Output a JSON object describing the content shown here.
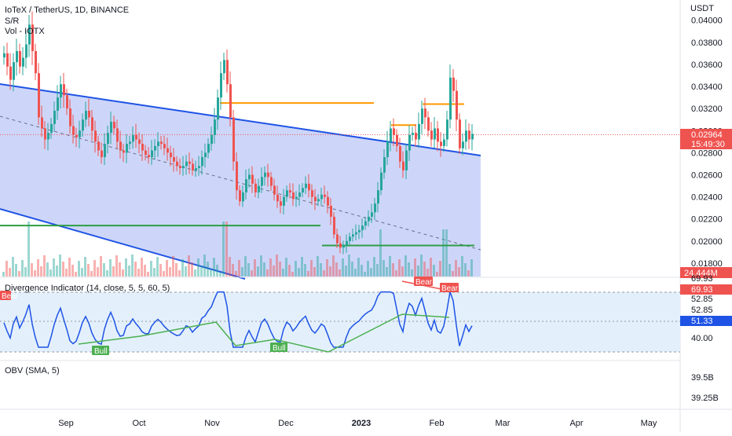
{
  "header": {
    "symbol_line": "IoTeX / TetherUS, 1D, BINANCE",
    "sr_label": "S/R",
    "vol_label": "Vol - IOTX"
  },
  "price_axis": {
    "currency": "USDT",
    "ticks": [
      "0.04000",
      "0.03800",
      "0.03600",
      "0.03400",
      "0.03200",
      "0.03000",
      "0.02800",
      "0.02600",
      "0.02400",
      "0.02200",
      "0.02000",
      "0.01800"
    ],
    "last_price": "0.02964",
    "countdown": "15:49:30",
    "volume_badge": "24.444M"
  },
  "divergence": {
    "title": "Divergence Indicator (14, close, 5, 5, 60, 5)",
    "axis_labels": [
      "69.93",
      "52.85",
      "52.85",
      "40.00"
    ],
    "badge_top": "69.93",
    "badge_current": "51.33",
    "bear_label": "Bear",
    "bull_label": "Bull"
  },
  "obv": {
    "title": "OBV (SMA, 5)",
    "axis_labels": [
      "39.5B",
      "39.25B"
    ]
  },
  "time_axis": {
    "labels": [
      "Sep",
      "Oct",
      "Nov",
      "Dec",
      "2023",
      "Feb",
      "Mar",
      "Apr",
      "May"
    ]
  },
  "colors": {
    "up": "#26a69a",
    "down": "#ef5350",
    "channel_line": "#1e53e5",
    "channel_fill": "#bcc8f7",
    "resistance": "#ff9800",
    "support": "#2e9e45",
    "rsi_line": "#1e53e5",
    "rsi_band": "#e3f0fc",
    "divergence_bull": "#4caf50",
    "divergence_bear": "#ef5350",
    "price_badge": "#ef5350"
  },
  "chart_data": {
    "type": "candlestick",
    "symbol": "IoTeX / TetherUS",
    "timeframe": "1D",
    "exchange": "BINANCE",
    "y_axis": {
      "label": "USDT",
      "range": [
        0.0175,
        0.0414
      ]
    },
    "x_axis": {
      "labels": [
        "Sep",
        "Oct",
        "Nov",
        "Dec",
        "2023",
        "Feb",
        "Mar",
        "Apr",
        "May"
      ]
    },
    "close_series": [
      0.037,
      0.0358,
      0.0346,
      0.0362,
      0.0372,
      0.0358,
      0.0366,
      0.0378,
      0.0396,
      0.0372,
      0.0352,
      0.0312,
      0.0302,
      0.0292,
      0.0298,
      0.0306,
      0.0318,
      0.033,
      0.0342,
      0.0332,
      0.032,
      0.0304,
      0.0296,
      0.0294,
      0.03,
      0.031,
      0.0318,
      0.0312,
      0.03,
      0.029,
      0.0282,
      0.0276,
      0.0288,
      0.0298,
      0.0308,
      0.0302,
      0.029,
      0.0282,
      0.028,
      0.0288,
      0.029,
      0.0296,
      0.0292,
      0.0288,
      0.0282,
      0.0278,
      0.0276,
      0.0282,
      0.0286,
      0.029,
      0.0288,
      0.0284,
      0.028,
      0.0276,
      0.0272,
      0.0268,
      0.0266,
      0.0268,
      0.0272,
      0.027,
      0.0264,
      0.0266,
      0.0268,
      0.0276,
      0.028,
      0.0288,
      0.0296,
      0.031,
      0.033,
      0.0352,
      0.0364,
      0.0342,
      0.0312,
      0.0272,
      0.0246,
      0.0236,
      0.0244,
      0.0256,
      0.026,
      0.0252,
      0.0244,
      0.025,
      0.0258,
      0.0262,
      0.0258,
      0.025,
      0.0242,
      0.0236,
      0.0232,
      0.024,
      0.0246,
      0.0244,
      0.0238,
      0.024,
      0.0244,
      0.0248,
      0.0252,
      0.0246,
      0.024,
      0.0236,
      0.0238,
      0.0242,
      0.024,
      0.0232,
      0.0222,
      0.0206,
      0.0198,
      0.0194,
      0.0196,
      0.02,
      0.0204,
      0.0206,
      0.0208,
      0.021,
      0.0214,
      0.0218,
      0.0222,
      0.0226,
      0.0234,
      0.0246,
      0.0262,
      0.0276,
      0.029,
      0.0302,
      0.0296,
      0.0286,
      0.0272,
      0.0264,
      0.0282,
      0.0296,
      0.0298,
      0.0292,
      0.0306,
      0.032,
      0.0312,
      0.03,
      0.0292,
      0.0302,
      0.029,
      0.0286,
      0.0292,
      0.031,
      0.0348,
      0.0336,
      0.031,
      0.0284,
      0.029,
      0.03,
      0.0292,
      0.0297
    ],
    "series": [
      {
        "name": "S/R resistance 1",
        "level": 0.0325
      },
      {
        "name": "S/R resistance 2",
        "level": 0.0324
      },
      {
        "name": "S/R resistance 3",
        "level": 0.0305
      },
      {
        "name": "S/R support 1",
        "level": 0.0214
      },
      {
        "name": "S/R support 2",
        "level": 0.0196
      }
    ],
    "last_price": 0.02964,
    "last_volume": "24.444M",
    "divergence_indicator": {
      "params": "14, close, 5, 5, 60, 5",
      "levels": [
        69.93,
        52.85,
        40.0
      ],
      "current": 51.33
    },
    "obv": {
      "params": "SMA, 5",
      "levels": [
        "39.5B",
        "39.25B"
      ]
    },
    "grid": false
  }
}
